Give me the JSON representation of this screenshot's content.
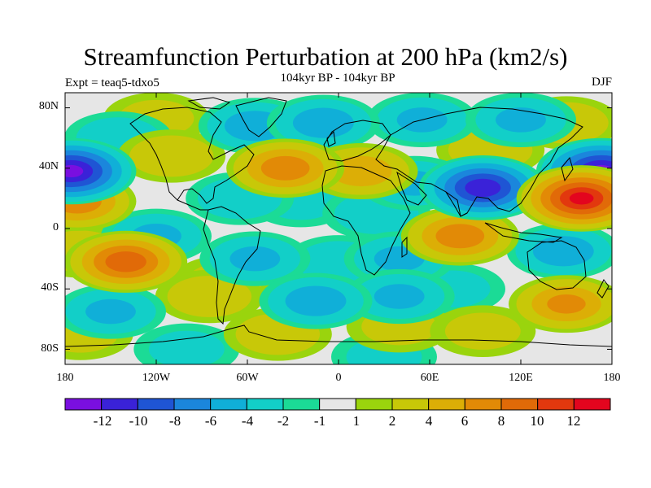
{
  "header": {
    "title": "Streamfunction Perturbation at 200 hPa (km2/s)",
    "subtitle": "104kyr BP - 104kyr BP",
    "experiment": "Expt = teaq5-tdxo5",
    "season": "DJF"
  },
  "map": {
    "lat_labels": [
      "80N",
      "40N",
      "0",
      "40S",
      "80S"
    ],
    "lon_labels": [
      "180",
      "120W",
      "60W",
      "0",
      "60E",
      "120E",
      "180"
    ],
    "lat_ticks": [
      80,
      40,
      0,
      -40,
      -80
    ],
    "lon_ticks": [
      -180,
      -120,
      -60,
      0,
      60,
      120,
      180
    ],
    "lon_range": [
      -180,
      180
    ],
    "lat_range": [
      -90,
      90
    ],
    "background_color": "#e6e6e6",
    "anomalies": [
      {
        "lon": 173,
        "lat": 38,
        "value": -12
      },
      {
        "lon": -176,
        "lat": 38,
        "value": -12
      },
      {
        "lon": 95,
        "lat": 27,
        "value": -11
      },
      {
        "lon": 50,
        "lat": 30,
        "value": -4
      },
      {
        "lon": -55,
        "lat": 68,
        "value": -5
      },
      {
        "lon": -10,
        "lat": 70,
        "value": -5
      },
      {
        "lon": 55,
        "lat": 72,
        "value": -4
      },
      {
        "lon": 120,
        "lat": 72,
        "value": -4
      },
      {
        "lon": -145,
        "lat": 60,
        "value": -3
      },
      {
        "lon": -65,
        "lat": 20,
        "value": -3
      },
      {
        "lon": -25,
        "lat": 18,
        "value": -2
      },
      {
        "lon": 25,
        "lat": 10,
        "value": -3
      },
      {
        "lon": -120,
        "lat": -5,
        "value": -4
      },
      {
        "lon": -55,
        "lat": -20,
        "value": -4
      },
      {
        "lon": 40,
        "lat": -20,
        "value": -4
      },
      {
        "lon": 0,
        "lat": -22,
        "value": -3
      },
      {
        "lon": 148,
        "lat": -15,
        "value": -5
      },
      {
        "lon": -15,
        "lat": -48,
        "value": -5
      },
      {
        "lon": 40,
        "lat": -45,
        "value": -4
      },
      {
        "lon": -150,
        "lat": -55,
        "value": -4
      },
      {
        "lon": 75,
        "lat": -40,
        "value": -2
      },
      {
        "lon": -100,
        "lat": -80,
        "value": -2
      },
      {
        "lon": 30,
        "lat": -85,
        "value": -2
      },
      {
        "lon": 160,
        "lat": 20,
        "value": 12
      },
      {
        "lon": -172,
        "lat": 18,
        "value": 7
      },
      {
        "lon": -140,
        "lat": -22,
        "value": 9
      },
      {
        "lon": -35,
        "lat": 40,
        "value": 7
      },
      {
        "lon": 15,
        "lat": 38,
        "value": 5
      },
      {
        "lon": 80,
        "lat": -5,
        "value": 7
      },
      {
        "lon": 150,
        "lat": -50,
        "value": 6
      },
      {
        "lon": -110,
        "lat": 48,
        "value": 3
      },
      {
        "lon": 100,
        "lat": 52,
        "value": 3
      },
      {
        "lon": 150,
        "lat": 70,
        "value": 3
      },
      {
        "lon": -120,
        "lat": 73,
        "value": 2
      },
      {
        "lon": -85,
        "lat": -45,
        "value": 3
      },
      {
        "lon": -40,
        "lat": -70,
        "value": 3
      },
      {
        "lon": 40,
        "lat": -65,
        "value": 2
      },
      {
        "lon": -170,
        "lat": -70,
        "value": 2
      },
      {
        "lon": 95,
        "lat": -68,
        "value": 2
      },
      {
        "lon": -170,
        "lat": -15,
        "value": 3
      },
      {
        "lon": -75,
        "lat": -35,
        "value": 2
      }
    ]
  },
  "colorbar": {
    "colors": [
      "#7a0fe0",
      "#3a22d8",
      "#1f55d4",
      "#1b86dc",
      "#10afd8",
      "#12cfc8",
      "#1bdb96",
      "#e6e6e6",
      "#9ad40d",
      "#c8c808",
      "#dcae06",
      "#e28a06",
      "#e16a08",
      "#e2380e",
      "#e3051e"
    ],
    "labels": [
      "-12",
      "-10",
      "-8",
      "-6",
      "-4",
      "-2",
      "-1",
      "1",
      "2",
      "4",
      "6",
      "8",
      "10",
      "12"
    ],
    "levels": [
      -12,
      -10,
      -8,
      -6,
      -4,
      -2,
      -1,
      1,
      2,
      4,
      6,
      8,
      10,
      12
    ]
  }
}
